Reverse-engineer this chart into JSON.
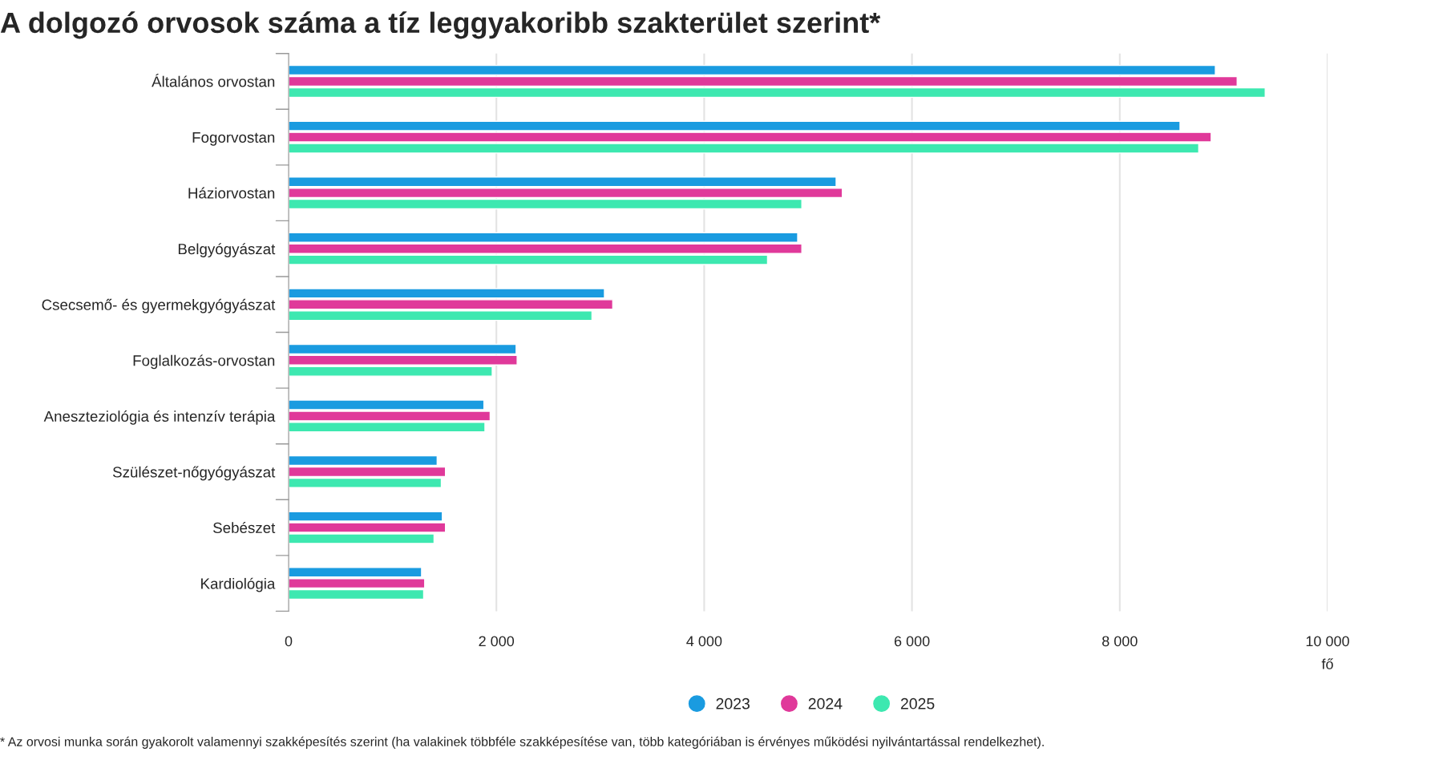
{
  "chart_data": {
    "type": "bar",
    "orientation": "horizontal",
    "title": "A dolgozó orvosok száma a tíz leggyakoribb szakterület szerint*",
    "categories": [
      "Általános orvostan",
      "Fogorvostan",
      "Háziorvostan",
      "Belgyógyászat",
      "Csecsemő- és gyermekgyógyászat",
      "Foglalkozás-orvostan",
      "Aneszteziológia és intenzív terápia",
      "Szülészet-nőgyógyászat",
      "Sebészet",
      "Kardiológia"
    ],
    "series": [
      {
        "name": "2023",
        "color": "#1a9be0",
        "values": [
          8920,
          8580,
          5270,
          4900,
          3040,
          2190,
          1880,
          1430,
          1480,
          1280
        ]
      },
      {
        "name": "2024",
        "color": "#e0399a",
        "values": [
          9130,
          8880,
          5330,
          4940,
          3120,
          2200,
          1940,
          1510,
          1510,
          1310
        ]
      },
      {
        "name": "2025",
        "color": "#3de8b0",
        "values": [
          9400,
          8760,
          4940,
          4610,
          2920,
          1960,
          1890,
          1470,
          1400,
          1300
        ]
      }
    ],
    "xlim": [
      0,
      10000
    ],
    "xticks": [
      0,
      {
        "value": 2000,
        "label": "2 000"
      },
      {
        "value": 4000,
        "label": "4 000"
      },
      {
        "value": 6000,
        "label": "6 000"
      },
      {
        "value": 8000,
        "label": "8 000"
      },
      {
        "value": 10000,
        "label": "10 000"
      }
    ],
    "xlabel": "fő",
    "grid": "x",
    "legend": "bottom",
    "annotations": [
      "* Az orvosi munka során gyakorolt valamennyi szakképesítés szerint (ha valakinek többféle szakképesítése van, több kategóriában is érvényes működési nyilvántartással rendelkezhet)."
    ]
  }
}
